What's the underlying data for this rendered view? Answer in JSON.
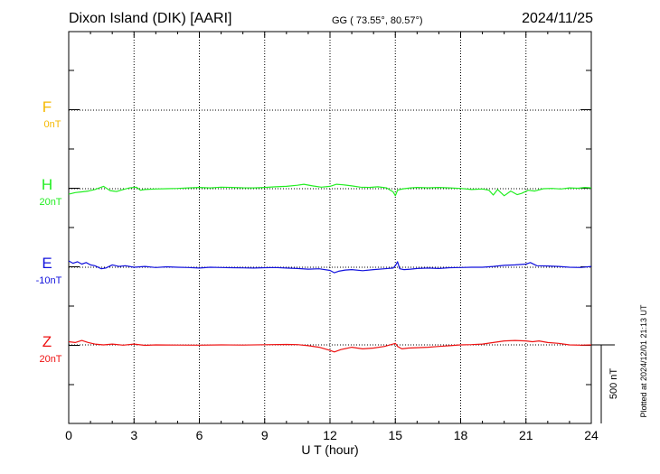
{
  "header": {
    "station": "Dixon Island (DIK)  [AARI]",
    "coords": "GG ( 73.55°,  80.57°)",
    "date": "2024/11/25"
  },
  "footer": {
    "plotted": "Plotted at 2024/12/01 21:13 UT"
  },
  "colors": {
    "F": "#f5b800",
    "H": "#22ee22",
    "E": "#1111dd",
    "Z": "#ee1111",
    "axis": "#000000"
  },
  "chart_data": {
    "type": "line",
    "xlabel": "U T (hour)",
    "xlim": [
      0,
      24
    ],
    "x_ticks": [
      "0",
      "3",
      "6",
      "9",
      "12",
      "15",
      "18",
      "21",
      "24"
    ],
    "scale_bar_label": "500 nT",
    "series": [
      {
        "name": "F",
        "offset_label": "0nT",
        "x": [],
        "y": []
      },
      {
        "name": "H",
        "offset_label": "20nT",
        "x": [
          0,
          0.3,
          0.6,
          0.9,
          1.2,
          1.6,
          1.9,
          2.2,
          2.5,
          2.8,
          3.1,
          3.3,
          3.5,
          4.0,
          4.5,
          5.0,
          5.5,
          6.0,
          6.5,
          7.0,
          7.5,
          8.0,
          8.5,
          9.0,
          9.5,
          10.0,
          10.5,
          10.8,
          11.2,
          11.6,
          12.0,
          12.3,
          12.6,
          13.0,
          13.4,
          13.8,
          14.2,
          14.6,
          14.9,
          15.0,
          15.1,
          15.2,
          15.4,
          15.7,
          16.0,
          16.5,
          17.0,
          17.5,
          18.0,
          18.5,
          19.0,
          19.3,
          19.5,
          19.7,
          20.0,
          20.3,
          20.6,
          20.8,
          21.1,
          21.4,
          21.8,
          22.2,
          22.6,
          23.0,
          23.4,
          23.7,
          24.0
        ],
        "y": [
          -35,
          -25,
          -20,
          -15,
          -5,
          15,
          -12,
          -18,
          -5,
          5,
          10,
          -10,
          -5,
          -2,
          0,
          2,
          5,
          8,
          5,
          10,
          8,
          6,
          5,
          8,
          12,
          15,
          22,
          28,
          18,
          10,
          15,
          28,
          25,
          18,
          10,
          8,
          12,
          5,
          -20,
          -45,
          -10,
          -5,
          0,
          5,
          8,
          6,
          8,
          5,
          2,
          -5,
          -2,
          -10,
          -40,
          -5,
          -45,
          -15,
          -38,
          -30,
          -10,
          -15,
          0,
          2,
          -2,
          5,
          3,
          8,
          5
        ]
      },
      {
        "name": "E",
        "offset_label": "-10nT",
        "x": [
          0,
          0.2,
          0.4,
          0.6,
          0.8,
          1.0,
          1.2,
          1.5,
          1.7,
          2.0,
          2.3,
          2.6,
          3.0,
          3.5,
          4.0,
          4.5,
          5.0,
          5.5,
          6.0,
          6.5,
          7.0,
          7.5,
          8.0,
          8.5,
          9.0,
          9.5,
          10.0,
          10.5,
          11.0,
          11.5,
          12.0,
          12.2,
          12.4,
          12.7,
          13.0,
          13.5,
          14.0,
          14.5,
          14.9,
          15.0,
          15.1,
          15.2,
          15.4,
          15.7,
          16.0,
          16.5,
          17.0,
          17.5,
          18.0,
          18.5,
          19.0,
          19.5,
          20.0,
          20.5,
          21.0,
          21.2,
          21.5,
          22.0,
          22.5,
          23.0,
          23.5,
          24.0
        ],
        "y": [
          40,
          25,
          35,
          20,
          30,
          15,
          10,
          -10,
          -5,
          15,
          5,
          10,
          0,
          5,
          -2,
          3,
          0,
          -2,
          -5,
          0,
          -2,
          -3,
          -4,
          -5,
          -3,
          -2,
          -5,
          -8,
          -12,
          -10,
          -20,
          -35,
          -25,
          -18,
          -15,
          -22,
          -15,
          -10,
          -5,
          10,
          35,
          -10,
          -15,
          -12,
          -8,
          -5,
          -8,
          -3,
          -2,
          0,
          0,
          5,
          12,
          15,
          20,
          30,
          10,
          8,
          5,
          0,
          -2,
          5
        ]
      },
      {
        "name": "Z",
        "offset_label": "20nT",
        "x": [
          0,
          0.3,
          0.6,
          0.9,
          1.2,
          1.6,
          2.0,
          2.5,
          3.0,
          3.5,
          4.0,
          5.0,
          6.0,
          7.0,
          8.0,
          9.0,
          10.0,
          10.5,
          11.0,
          11.5,
          12.0,
          12.2,
          12.5,
          13.0,
          13.5,
          14.0,
          14.5,
          14.9,
          15.0,
          15.1,
          15.3,
          15.6,
          16.0,
          16.5,
          17.0,
          17.5,
          18.0,
          18.5,
          19.0,
          19.5,
          20.0,
          20.5,
          21.0,
          21.3,
          21.6,
          22.0,
          22.5,
          23.0,
          23.5,
          24.0
        ],
        "y": [
          20,
          15,
          28,
          15,
          5,
          0,
          5,
          -2,
          5,
          -3,
          0,
          -1,
          -2,
          0,
          -1,
          1,
          3,
          2,
          -5,
          -15,
          -35,
          -45,
          -30,
          -15,
          -25,
          -20,
          -10,
          5,
          10,
          -10,
          -25,
          -20,
          -18,
          -15,
          -10,
          -5,
          0,
          2,
          5,
          15,
          25,
          28,
          25,
          20,
          25,
          15,
          10,
          0,
          -2,
          0
        ]
      }
    ]
  }
}
